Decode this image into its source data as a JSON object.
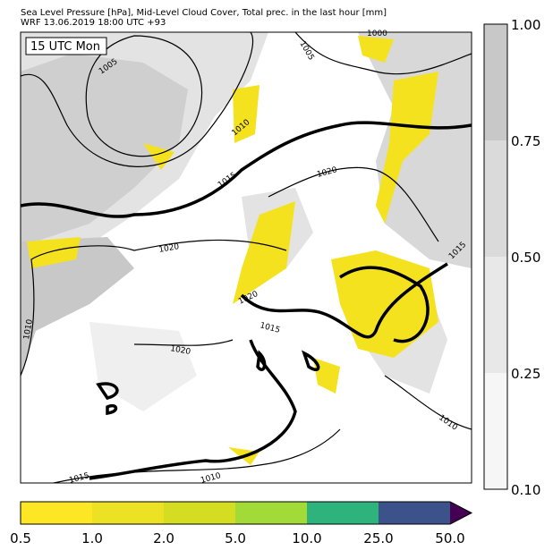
{
  "header": {
    "title": "Sea Level Pressure [hPa], Mid-Level Cloud Cover, Total prec. in the last hour [mm]",
    "subtitle": "WRF 13.06.2019 18:00 UTC +93"
  },
  "map": {
    "time_label": "15 UTC Mon",
    "contour_labels": [
      "1005",
      "1005",
      "1000",
      "1010",
      "1015",
      "1020",
      "1020",
      "1020",
      "1015",
      "1010",
      "1020",
      "1015",
      "1010",
      "1010",
      "1015"
    ]
  },
  "cloud_colorbar": {
    "labels": [
      "1.00",
      "0.75",
      "0.50",
      "0.25",
      "0.10"
    ]
  },
  "precip_colorbar": {
    "labels": [
      "0.5",
      "1.0",
      "2.0",
      "5.0",
      "10.0",
      "25.0",
      "50.0"
    ]
  }
}
